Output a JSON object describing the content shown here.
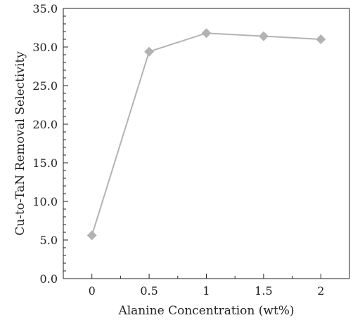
{
  "chart_data": {
    "type": "line",
    "title": "",
    "xlabel": "Alanine Concentration (wt%)",
    "ylabel": "Cu-to-TaN Removal Selectivity",
    "x": [
      0,
      0.5,
      1,
      1.5,
      2
    ],
    "x_tick_labels": [
      "0",
      "0.5",
      "1",
      "1.5",
      "2"
    ],
    "xlim": [
      -0.25,
      2.25
    ],
    "ylim": [
      0,
      35
    ],
    "y_tick_values": [
      0,
      5,
      10,
      15,
      20,
      25,
      30,
      35
    ],
    "y_tick_labels": [
      "0.0",
      "5.0",
      "10.0",
      "15.0",
      "20.0",
      "25.0",
      "30.0",
      "35.0"
    ],
    "y_minor_step": 1,
    "grid": false,
    "legend": "none",
    "series": [
      {
        "values": [
          5.6,
          29.4,
          31.8,
          31.4,
          31.0
        ],
        "color": "#b3b3b3",
        "marker": "diamond"
      }
    ]
  }
}
